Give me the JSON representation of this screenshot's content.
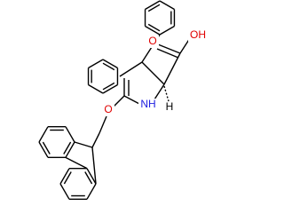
{
  "atoms": [
    {
      "label": "O"
    },
    {
      "label": "OH"
    },
    {
      "label": "NH"
    },
    {
      "label": "H"
    },
    {
      "label": "O"
    }
  ]
}
